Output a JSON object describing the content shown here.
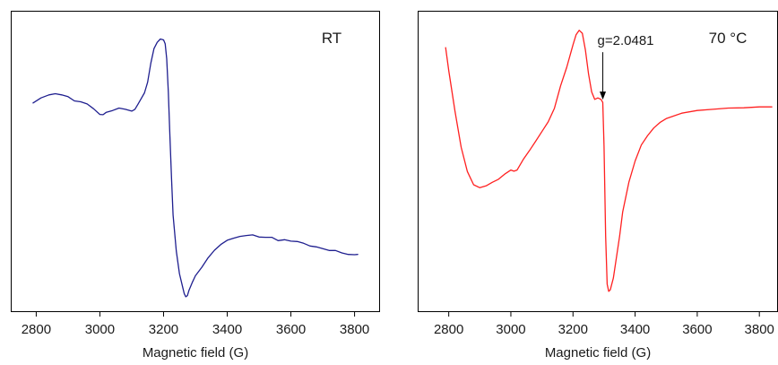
{
  "chart_data": [
    {
      "type": "line",
      "panel_label": "RT",
      "xlabel": "Magnetic field (G)",
      "ylabel": "",
      "xlim": [
        2720,
        3880
      ],
      "ylim": [
        0,
        1
      ],
      "xticks": [
        2800,
        3000,
        3200,
        3400,
        3600,
        3800
      ],
      "yticks_visible": false,
      "grid": false,
      "series": [
        {
          "color": "#1f1f8f",
          "x": [
            2790,
            2815,
            2840,
            2860,
            2880,
            2900,
            2920,
            2940,
            2960,
            2980,
            3000,
            3010,
            3020,
            3040,
            3060,
            3080,
            3100,
            3110,
            3120,
            3130,
            3140,
            3150,
            3160,
            3170,
            3180,
            3190,
            3200,
            3205,
            3210,
            3215,
            3220,
            3225,
            3230,
            3240,
            3250,
            3260,
            3265,
            3270,
            3275,
            3280,
            3290,
            3300,
            3320,
            3340,
            3360,
            3380,
            3400,
            3420,
            3440,
            3460,
            3480,
            3500,
            3520,
            3540,
            3560,
            3580,
            3600,
            3620,
            3640,
            3660,
            3680,
            3700,
            3720,
            3740,
            3760,
            3780,
            3800,
            3810
          ],
          "y": [
            0.693,
            0.71,
            0.72,
            0.724,
            0.72,
            0.714,
            0.7,
            0.697,
            0.69,
            0.674,
            0.655,
            0.654,
            0.662,
            0.668,
            0.676,
            0.672,
            0.666,
            0.672,
            0.69,
            0.708,
            0.727,
            0.762,
            0.826,
            0.874,
            0.895,
            0.906,
            0.903,
            0.89,
            0.84,
            0.73,
            0.58,
            0.44,
            0.32,
            0.2,
            0.125,
            0.08,
            0.058,
            0.048,
            0.052,
            0.07,
            0.095,
            0.118,
            0.146,
            0.178,
            0.203,
            0.222,
            0.236,
            0.243,
            0.249,
            0.252,
            0.254,
            0.247,
            0.246,
            0.246,
            0.235,
            0.238,
            0.233,
            0.232,
            0.226,
            0.217,
            0.214,
            0.208,
            0.202,
            0.202,
            0.194,
            0.189,
            0.188,
            0.189
          ]
        }
      ]
    },
    {
      "type": "line",
      "panel_label": "70 °C",
      "xlabel": "Magnetic field (G)",
      "ylabel": "",
      "xlim": [
        2700,
        3860
      ],
      "ylim": [
        0,
        1
      ],
      "xticks": [
        2800,
        3000,
        3200,
        3400,
        3600,
        3800
      ],
      "yticks_visible": false,
      "grid": false,
      "annotations": [
        {
          "text": "g=2.0481",
          "x": 3296,
          "y": 0.695,
          "arrow": true
        }
      ],
      "series": [
        {
          "color": "#ff2020",
          "x": [
            2790,
            2800,
            2820,
            2840,
            2860,
            2880,
            2900,
            2920,
            2940,
            2960,
            2980,
            3000,
            3010,
            3020,
            3040,
            3060,
            3080,
            3100,
            3120,
            3140,
            3160,
            3180,
            3200,
            3210,
            3220,
            3230,
            3240,
            3250,
            3260,
            3270,
            3280,
            3290,
            3296,
            3300,
            3305,
            3310,
            3315,
            3320,
            3330,
            3340,
            3350,
            3360,
            3380,
            3400,
            3420,
            3440,
            3460,
            3480,
            3500,
            3550,
            3600,
            3650,
            3700,
            3750,
            3800,
            3840
          ],
          "y": [
            0.877,
            0.8,
            0.666,
            0.546,
            0.465,
            0.421,
            0.411,
            0.417,
            0.429,
            0.439,
            0.456,
            0.47,
            0.466,
            0.47,
            0.505,
            0.535,
            0.566,
            0.598,
            0.63,
            0.675,
            0.75,
            0.812,
            0.887,
            0.92,
            0.935,
            0.925,
            0.87,
            0.79,
            0.73,
            0.705,
            0.71,
            0.705,
            0.695,
            0.55,
            0.25,
            0.09,
            0.066,
            0.071,
            0.11,
            0.18,
            0.25,
            0.33,
            0.43,
            0.5,
            0.553,
            0.584,
            0.61,
            0.628,
            0.641,
            0.659,
            0.668,
            0.672,
            0.676,
            0.677,
            0.68,
            0.68
          ]
        }
      ]
    }
  ]
}
